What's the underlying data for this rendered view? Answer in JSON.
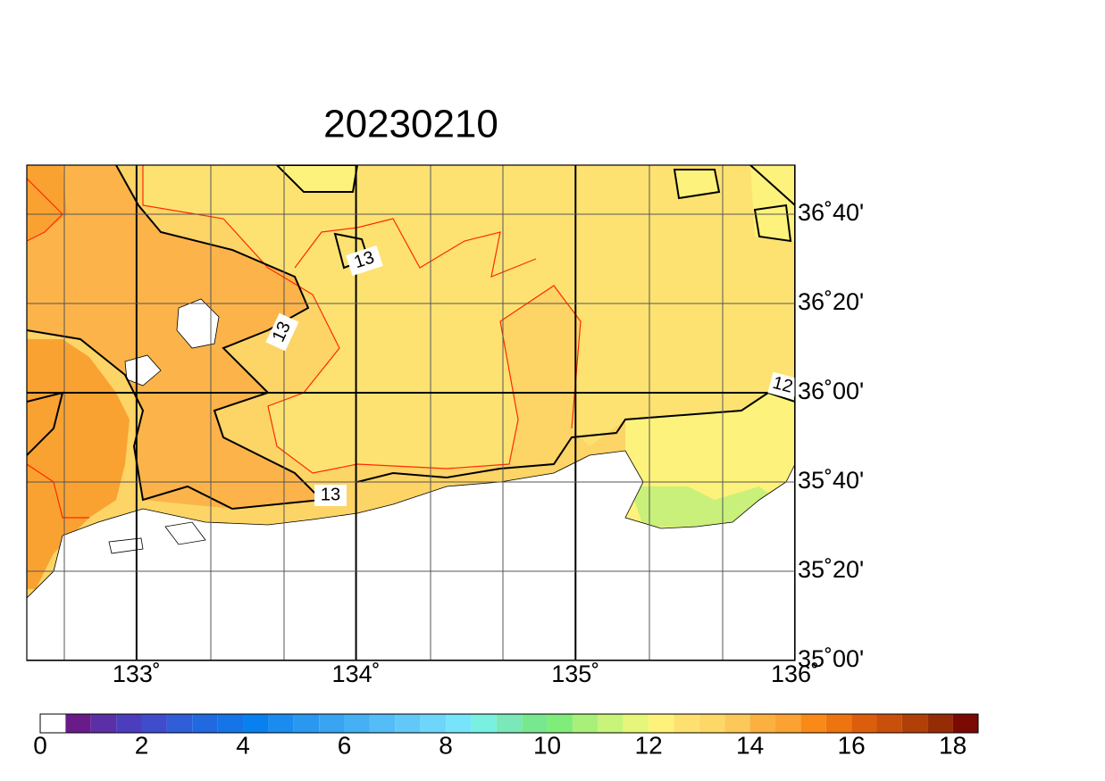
{
  "title": "20230210",
  "map": {
    "xlim": [
      132.5,
      136
    ],
    "ylim": [
      35,
      36.85
    ],
    "xticks": [
      {
        "value": 133,
        "label": "133˚"
      },
      {
        "value": 134,
        "label": "134˚"
      },
      {
        "value": 135,
        "label": "135˚"
      },
      {
        "value": 136,
        "label": "136˚"
      }
    ],
    "yticks": [
      {
        "value": 35,
        "label": "35˚00'"
      },
      {
        "value": 35.3333,
        "label": "35˚20'"
      },
      {
        "value": 35.6667,
        "label": "35˚40'"
      },
      {
        "value": 36,
        "label": "36˚00'"
      },
      {
        "value": 36.3333,
        "label": "36˚20'"
      },
      {
        "value": 36.6667,
        "label": "36˚40'"
      }
    ],
    "contour_labels": [
      "13",
      "13",
      "13",
      "12"
    ]
  },
  "colorbar": {
    "ticks": [
      0,
      2,
      4,
      6,
      8,
      10,
      12,
      14,
      16,
      18
    ],
    "step": 0.5,
    "colors": [
      "#ffffff",
      "#6a1b8a",
      "#5b2fa5",
      "#4c3dbd",
      "#3f4ccc",
      "#2f5ed8",
      "#2069e0",
      "#1474e8",
      "#0880f0",
      "#1a8cf0",
      "#2a98f0",
      "#38a4f2",
      "#46b0f4",
      "#54bcf6",
      "#62c8f8",
      "#6ed6fa",
      "#78e4fc",
      "#7af0e0",
      "#7ae8b8",
      "#78e890",
      "#80ec7a",
      "#a8f07a",
      "#c8f47a",
      "#e6f67a",
      "#fef27a",
      "#fde070",
      "#fdd866",
      "#fcc85a",
      "#fbb040",
      "#fba232",
      "#f98a18",
      "#ee7410",
      "#dc5e0c",
      "#c8500a",
      "#b04008",
      "#962c06",
      "#7a0a02"
    ]
  }
}
